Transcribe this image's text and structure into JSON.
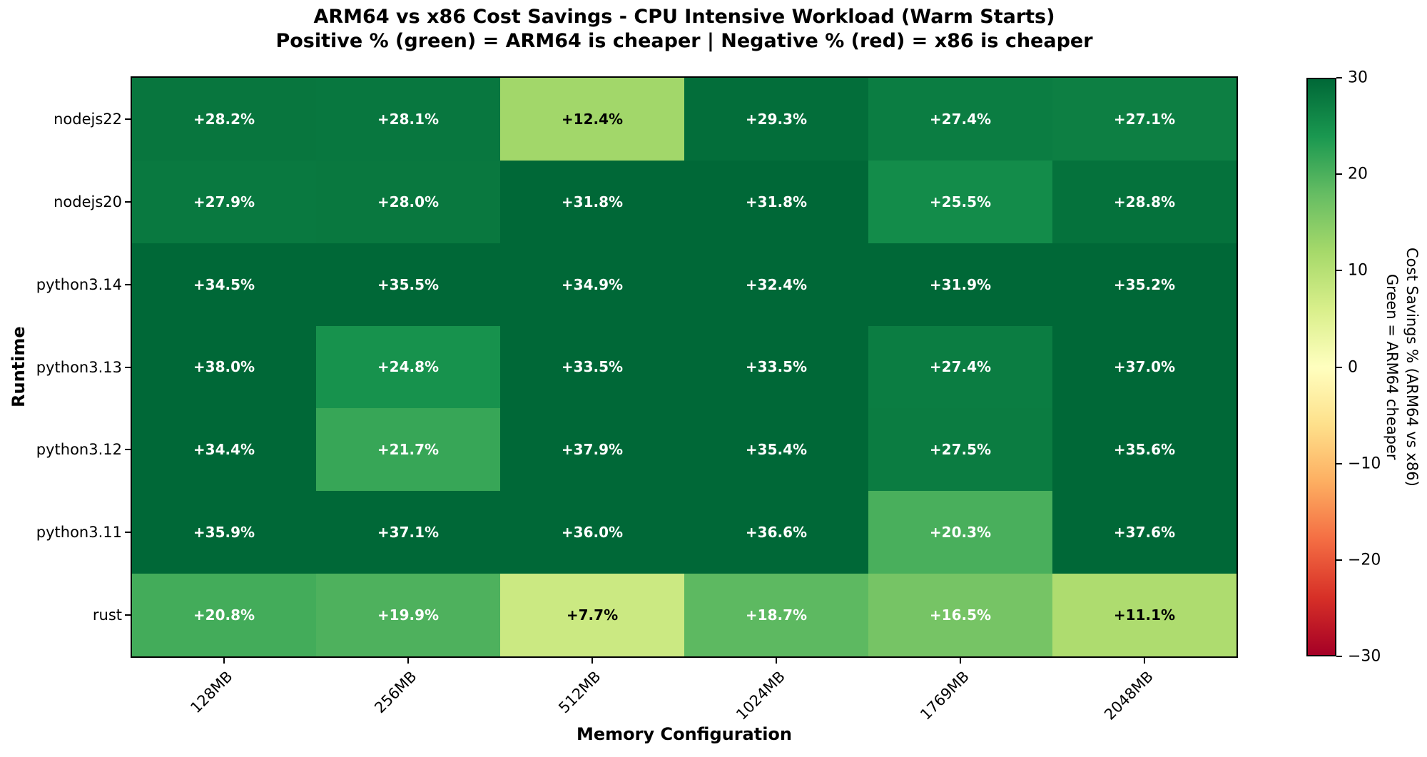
{
  "title": "ARM64 vs x86 Cost Savings - CPU Intensive Workload (Warm Starts)",
  "subtitle": "Positive % (green) = ARM64 is cheaper | Negative % (red) = x86 is cheaper",
  "chart_data": {
    "type": "heatmap",
    "title": "ARM64 vs x86 Cost Savings - CPU Intensive Workload (Warm Starts)",
    "subtitle": "Positive % (green) = ARM64 is cheaper | Negative % (red) = x86 is cheaper",
    "xlabel": "Memory Configuration",
    "ylabel": "Runtime",
    "x_categories": [
      "128MB",
      "256MB",
      "512MB",
      "1024MB",
      "1769MB",
      "2048MB"
    ],
    "y_categories": [
      "nodejs22",
      "nodejs20",
      "python3.14",
      "python3.13",
      "python3.12",
      "python3.11",
      "rust"
    ],
    "values": [
      [
        28.2,
        28.1,
        12.4,
        29.3,
        27.4,
        27.1
      ],
      [
        27.9,
        28.0,
        31.8,
        31.8,
        25.5,
        28.8
      ],
      [
        34.5,
        35.5,
        34.9,
        32.4,
        31.9,
        35.2
      ],
      [
        38.0,
        24.8,
        33.5,
        33.5,
        27.4,
        37.0
      ],
      [
        34.4,
        21.7,
        37.9,
        35.4,
        27.5,
        35.6
      ],
      [
        35.9,
        37.1,
        36.0,
        36.6,
        20.3,
        37.6
      ],
      [
        20.8,
        19.9,
        7.7,
        18.7,
        16.5,
        11.1
      ]
    ],
    "cell_value_prefix": "+",
    "cell_value_suffix": "%",
    "colorbar": {
      "label_line1": "Cost Savings % (ARM64 vs x86)",
      "label_line2": "Green = ARM64 cheaper",
      "tick_labels": [
        "30",
        "20",
        "10",
        "0",
        "−10",
        "−20",
        "−30"
      ],
      "tick_values": [
        30,
        20,
        10,
        0,
        -10,
        -20,
        -30
      ],
      "vmin": -30,
      "vmax": 30,
      "colormap": "RdYlGn",
      "gradient_stops_top_to_bottom": [
        "#006837",
        "#1a9850",
        "#66bd63",
        "#a6d96a",
        "#d9ef8b",
        "#ffffbf",
        "#fee08b",
        "#fdae61",
        "#f46d43",
        "#d73027",
        "#a50026"
      ]
    },
    "cell_text_colors": {
      "on_dark": "#ffffff",
      "on_light": "#000000"
    }
  }
}
